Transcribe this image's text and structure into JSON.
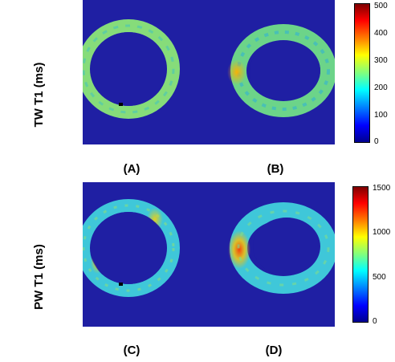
{
  "rows": [
    {
      "label": "TW T1 (ms)",
      "colorbar": {
        "max": 500,
        "ticks": [
          "500",
          "400",
          "300",
          "200",
          "100",
          "0"
        ]
      }
    },
    {
      "label": "PW T1 (ms)",
      "colorbar": {
        "max": 1500,
        "ticks": [
          "1500",
          "1000",
          "500",
          "0"
        ]
      }
    }
  ],
  "panels": [
    "(A)",
    "(B)",
    "(C)",
    "(D)"
  ],
  "colors": {
    "background": "#1a1a9e",
    "ring_base": "#5fd38c"
  }
}
